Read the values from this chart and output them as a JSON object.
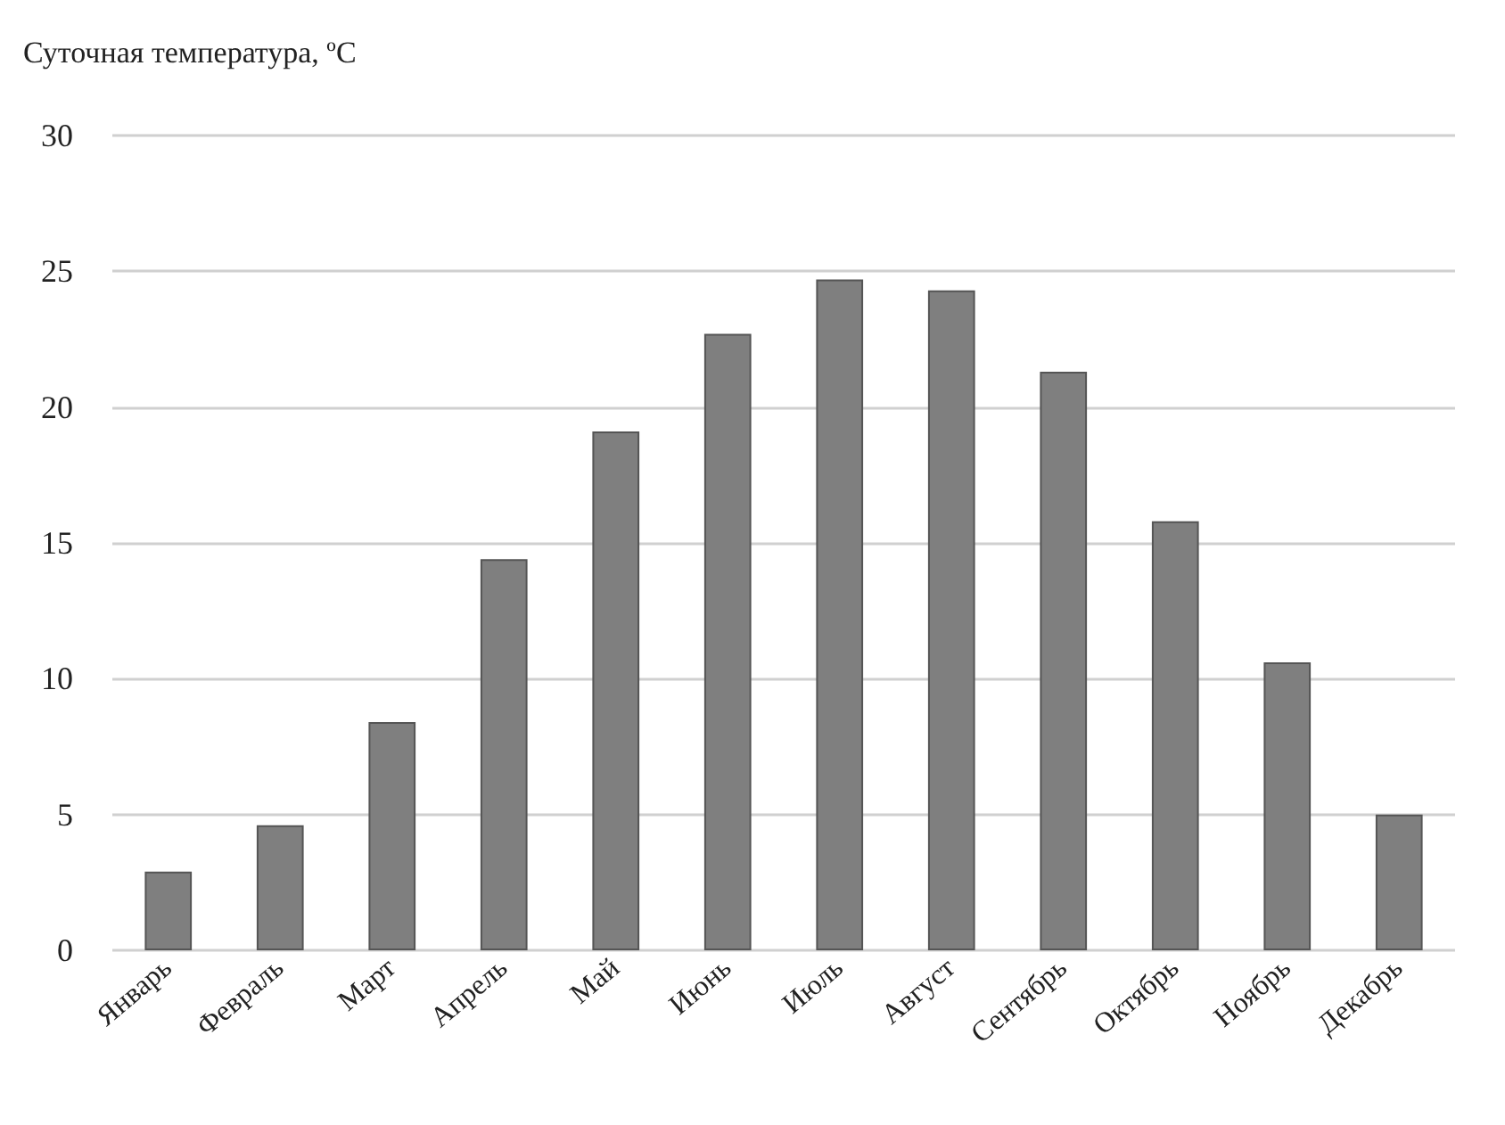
{
  "chart_data": {
    "type": "bar",
    "title": "Суточная температура, ºC",
    "categories": [
      "Январь",
      "Февраль",
      "Март",
      "Апрель",
      "Май",
      "Июнь",
      "Июль",
      "Август",
      "Сентябрь",
      "Октябрь",
      "Ноябрь",
      "Декабрь"
    ],
    "values": [
      2.9,
      4.6,
      8.4,
      14.4,
      19.1,
      22.7,
      24.7,
      24.3,
      21.3,
      15.8,
      10.6,
      5.0
    ],
    "color": "#7f7f7f",
    "ylim": [
      0,
      30
    ],
    "yticks": [
      0,
      5,
      10,
      15,
      20,
      25,
      30
    ],
    "grid": "y"
  }
}
